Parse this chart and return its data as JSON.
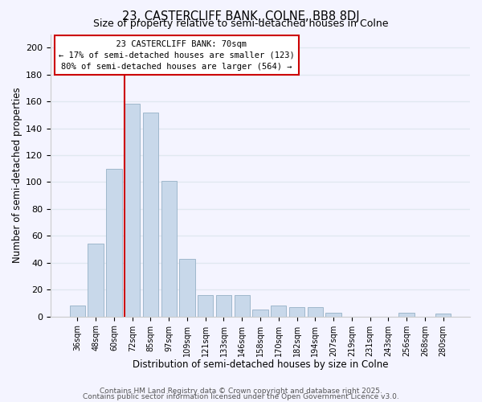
{
  "title": "23, CASTERCLIFF BANK, COLNE, BB8 8DJ",
  "subtitle": "Size of property relative to semi-detached houses in Colne",
  "xlabel": "Distribution of semi-detached houses by size in Colne",
  "ylabel": "Number of semi-detached properties",
  "bar_labels": [
    "36sqm",
    "48sqm",
    "60sqm",
    "72sqm",
    "85sqm",
    "97sqm",
    "109sqm",
    "121sqm",
    "133sqm",
    "146sqm",
    "158sqm",
    "170sqm",
    "182sqm",
    "194sqm",
    "207sqm",
    "219sqm",
    "231sqm",
    "243sqm",
    "256sqm",
    "268sqm",
    "280sqm"
  ],
  "bar_values": [
    8,
    54,
    110,
    158,
    152,
    101,
    43,
    16,
    16,
    16,
    5,
    8,
    7,
    7,
    3,
    0,
    0,
    0,
    3,
    0,
    2
  ],
  "bar_color": "#c8d8ea",
  "bar_edge_color": "#a0b8cc",
  "property_label": "23 CASTERCLIFF BANK: 70sqm",
  "smaller_pct": 17,
  "smaller_count": 123,
  "larger_pct": 80,
  "larger_count": 564,
  "annotation_box_color": "#ffffff",
  "annotation_box_edge": "#cc0000",
  "line_color": "#cc0000",
  "ylim": [
    0,
    210
  ],
  "yticks": [
    0,
    20,
    40,
    60,
    80,
    100,
    120,
    140,
    160,
    180,
    200
  ],
  "footer1": "Contains HM Land Registry data © Crown copyright and database right 2025.",
  "footer2": "Contains public sector information licensed under the Open Government Licence v3.0.",
  "background_color": "#f4f4ff",
  "grid_color": "#e0e8f0"
}
